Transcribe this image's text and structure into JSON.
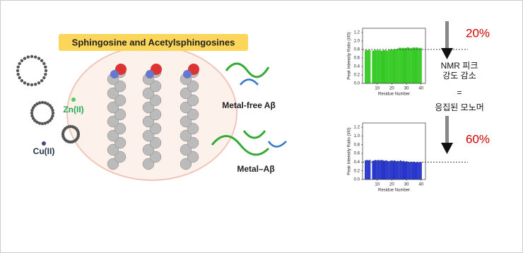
{
  "figure": {
    "title": "Sphingosine and Acetylsphingosines",
    "zn": "Zn(II)",
    "cu": "Cu(II)",
    "metal_free": "Metal-free Aβ",
    "metal": "Metal–Aβ",
    "annotation_lines": [
      "NMR 피크",
      "강도 감소",
      "=",
      "응집된 모노머"
    ]
  },
  "chart_data": [
    {
      "type": "bar",
      "color": "#2fc81e",
      "annotation": "20%",
      "ref_line": 0.8,
      "xlabel": "Residue Number",
      "ylabel": "Peak Intensity Ratio (I/I0)",
      "xlim": [
        0,
        43
      ],
      "xticks": [
        10,
        20,
        30,
        40
      ],
      "ylim": [
        0,
        1.3
      ],
      "yticks": [
        {
          "value": 0,
          "label": "0.0"
        },
        0.2,
        0.4,
        0.6,
        0.8,
        {
          "value": 1,
          "label": "1.0"
        },
        1.2
      ],
      "x": [
        2,
        3,
        4,
        5,
        7,
        8,
        9,
        10,
        11,
        12,
        13,
        14,
        15,
        16,
        17,
        18,
        19,
        20,
        21,
        22,
        23,
        24,
        25,
        26,
        27,
        28,
        29,
        30,
        31,
        32,
        33,
        34,
        35,
        36,
        37,
        38,
        39,
        40
      ],
      "values": [
        0.78,
        0.79,
        0.78,
        0.79,
        0.77,
        0.78,
        0.79,
        0.78,
        0.79,
        0.78,
        0.77,
        0.78,
        0.79,
        0.78,
        0.77,
        0.79,
        0.8,
        0.79,
        0.8,
        0.81,
        0.81,
        0.82,
        0.84,
        0.84,
        0.83,
        0.84,
        0.83,
        0.84,
        0.85,
        0.84,
        0.83,
        0.84,
        0.85,
        0.84,
        0.85,
        0.84,
        0.83,
        0.84
      ]
    },
    {
      "type": "bar",
      "color": "#1f2fc8",
      "annotation": "60%",
      "ref_line": 0.4,
      "xlabel": "Residue Number",
      "ylabel": "Peak Intensity Ratio (I/I0)",
      "xlim": [
        0,
        43
      ],
      "xticks": [
        10,
        20,
        30,
        40
      ],
      "ylim": [
        0,
        1.3
      ],
      "yticks": [
        {
          "value": 0,
          "label": "0.0"
        },
        0.2,
        0.4,
        0.6,
        0.8,
        {
          "value": 1,
          "label": "1.0"
        },
        1.2
      ],
      "x": [
        2,
        3,
        4,
        5,
        7,
        8,
        9,
        10,
        11,
        12,
        13,
        14,
        15,
        16,
        17,
        18,
        19,
        20,
        21,
        22,
        23,
        24,
        25,
        26,
        27,
        28,
        29,
        30,
        31,
        32,
        33,
        34,
        35,
        36,
        37,
        38,
        39,
        40
      ],
      "values": [
        0.44,
        0.45,
        0.44,
        0.45,
        0.43,
        0.44,
        0.45,
        0.44,
        0.45,
        0.44,
        0.45,
        0.44,
        0.43,
        0.44,
        0.43,
        0.42,
        0.43,
        0.44,
        0.43,
        0.44,
        0.42,
        0.43,
        0.42,
        0.44,
        0.42,
        0.43,
        0.41,
        0.42,
        0.41,
        0.4,
        0.41,
        0.4,
        0.41,
        0.4,
        0.39,
        0.4,
        0.39,
        0.4
      ]
    }
  ]
}
